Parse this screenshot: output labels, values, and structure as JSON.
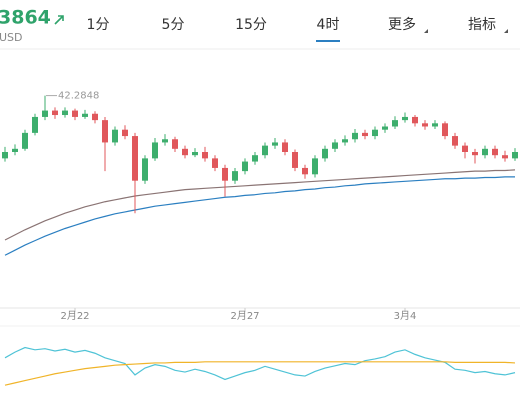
{
  "header": {
    "price": "3864",
    "currency": "USD",
    "tabs": [
      "1分",
      "5分",
      "15分",
      "4时",
      "更多",
      "指标"
    ],
    "active_tab": 3
  },
  "chart_data": {
    "type": "candlestick",
    "categories": [
      null,
      null,
      null,
      null,
      null,
      null,
      null,
      "2月22",
      null,
      null,
      null,
      null,
      null,
      null,
      null,
      null,
      null,
      null,
      null,
      null,
      null,
      null,
      null,
      null,
      "2月27",
      null,
      null,
      null,
      null,
      null,
      null,
      null,
      null,
      null,
      null,
      null,
      null,
      null,
      null,
      null,
      "3月4",
      null,
      null,
      null,
      null,
      null,
      null,
      null,
      null,
      null,
      null,
      null
    ],
    "up_color": "#3dae6d",
    "down_color": "#e0575b",
    "ylim": [
      39.0,
      43.0
    ],
    "candles": [
      [
        41.3,
        41.48,
        41.25,
        41.4
      ],
      [
        41.4,
        41.52,
        41.35,
        41.45
      ],
      [
        41.45,
        41.75,
        41.42,
        41.7
      ],
      [
        41.7,
        42.0,
        41.66,
        41.95
      ],
      [
        41.95,
        42.2848,
        41.9,
        42.05
      ],
      [
        42.05,
        42.1,
        41.92,
        41.98
      ],
      [
        41.98,
        42.1,
        41.94,
        42.05
      ],
      [
        42.05,
        42.08,
        41.9,
        41.95
      ],
      [
        41.95,
        42.06,
        41.92,
        42.0
      ],
      [
        42.0,
        42.04,
        41.85,
        41.9
      ],
      [
        41.9,
        41.95,
        41.1,
        41.55
      ],
      [
        41.55,
        41.8,
        41.5,
        41.75
      ],
      [
        41.75,
        41.82,
        41.6,
        41.65
      ],
      [
        41.65,
        41.7,
        40.44,
        40.95
      ],
      [
        40.95,
        41.35,
        40.9,
        41.3
      ],
      [
        41.3,
        41.62,
        41.26,
        41.55
      ],
      [
        41.55,
        41.68,
        41.5,
        41.6
      ],
      [
        41.6,
        41.64,
        41.4,
        41.45
      ],
      [
        41.45,
        41.5,
        41.3,
        41.35
      ],
      [
        41.35,
        41.46,
        41.32,
        41.4
      ],
      [
        41.4,
        41.48,
        41.25,
        41.3
      ],
      [
        41.3,
        41.35,
        41.1,
        41.15
      ],
      [
        41.15,
        41.2,
        40.7,
        40.95
      ],
      [
        40.95,
        41.15,
        40.9,
        41.1
      ],
      [
        41.1,
        41.3,
        41.05,
        41.25
      ],
      [
        41.25,
        41.4,
        41.2,
        41.35
      ],
      [
        41.35,
        41.55,
        41.3,
        41.5
      ],
      [
        41.5,
        41.62,
        41.45,
        41.55
      ],
      [
        41.55,
        41.6,
        41.35,
        41.4
      ],
      [
        41.4,
        41.44,
        41.1,
        41.15
      ],
      [
        41.15,
        41.2,
        40.98,
        41.05
      ],
      [
        41.05,
        41.35,
        41.0,
        41.3
      ],
      [
        41.3,
        41.5,
        41.25,
        41.45
      ],
      [
        41.45,
        41.6,
        41.4,
        41.55
      ],
      [
        41.55,
        41.66,
        41.5,
        41.6
      ],
      [
        41.6,
        41.76,
        41.55,
        41.7
      ],
      [
        41.7,
        41.75,
        41.6,
        41.65
      ],
      [
        41.65,
        41.8,
        41.6,
        41.75
      ],
      [
        41.75,
        41.85,
        41.7,
        41.8
      ],
      [
        41.8,
        41.96,
        41.76,
        41.9
      ],
      [
        41.9,
        42.02,
        41.86,
        41.95
      ],
      [
        41.95,
        41.98,
        41.8,
        41.85
      ],
      [
        41.85,
        41.9,
        41.75,
        41.8
      ],
      [
        41.8,
        41.9,
        41.76,
        41.85
      ],
      [
        41.85,
        41.88,
        41.6,
        41.65
      ],
      [
        41.65,
        41.7,
        41.45,
        41.5
      ],
      [
        41.5,
        41.55,
        41.3,
        41.4
      ],
      [
        41.4,
        41.45,
        41.22,
        41.35
      ],
      [
        41.35,
        41.5,
        41.3,
        41.45
      ],
      [
        41.45,
        41.5,
        41.3,
        41.35
      ],
      [
        41.35,
        41.42,
        41.25,
        41.3
      ],
      [
        41.3,
        41.46,
        41.26,
        41.4
      ]
    ],
    "max_label_index": 4,
    "series": [
      {
        "color": "#8a7474",
        "values": [
          40.02,
          40.1,
          40.18,
          40.25,
          40.32,
          40.38,
          40.44,
          40.49,
          40.54,
          40.58,
          40.62,
          40.65,
          40.68,
          40.71,
          40.73,
          40.75,
          40.77,
          40.79,
          40.81,
          40.82,
          40.83,
          40.84,
          40.85,
          40.86,
          40.87,
          40.88,
          40.89,
          40.9,
          40.91,
          40.92,
          40.93,
          40.94,
          40.95,
          40.96,
          40.97,
          40.98,
          40.99,
          41.0,
          41.01,
          41.02,
          41.03,
          41.04,
          41.05,
          41.06,
          41.07,
          41.08,
          41.09,
          41.1,
          41.1,
          41.11,
          41.11,
          41.12
        ]
      },
      {
        "color": "#2b7fc1",
        "values": [
          39.78,
          39.86,
          39.94,
          40.01,
          40.08,
          40.14,
          40.2,
          40.25,
          40.3,
          40.35,
          40.39,
          40.43,
          40.46,
          40.49,
          40.52,
          40.55,
          40.57,
          40.59,
          40.61,
          40.63,
          40.65,
          40.67,
          40.69,
          40.7,
          40.72,
          40.73,
          40.75,
          40.76,
          40.78,
          40.79,
          40.81,
          40.82,
          40.84,
          40.85,
          40.87,
          40.88,
          40.9,
          40.91,
          40.92,
          40.93,
          40.94,
          40.95,
          40.96,
          40.97,
          40.98,
          40.98,
          40.99,
          40.99,
          41.0,
          41.0,
          41.01,
          41.01
        ]
      }
    ],
    "indicator": {
      "ylim": [
        0,
        100
      ],
      "series": [
        {
          "color": "#4fc3d6",
          "values": [
            60,
            70,
            78,
            74,
            76,
            72,
            75,
            70,
            73,
            68,
            60,
            55,
            50,
            30,
            42,
            48,
            45,
            38,
            35,
            40,
            36,
            30,
            22,
            28,
            34,
            38,
            45,
            40,
            35,
            30,
            28,
            36,
            42,
            46,
            50,
            48,
            55,
            58,
            62,
            70,
            74,
            66,
            60,
            56,
            52,
            40,
            38,
            34,
            36,
            32,
            30,
            34
          ]
        },
        {
          "color": "#f0b429",
          "values": [
            12,
            16,
            20,
            24,
            28,
            32,
            35,
            38,
            41,
            43,
            45,
            47,
            48,
            49,
            50,
            51,
            51,
            52,
            52,
            52,
            53,
            53,
            53,
            53,
            53,
            53,
            53,
            53,
            53,
            53,
            53,
            53,
            53,
            53,
            53,
            53,
            53,
            53,
            53,
            53,
            53,
            53,
            53,
            53,
            53,
            52,
            52,
            52,
            52,
            52,
            52,
            51
          ]
        }
      ]
    }
  }
}
